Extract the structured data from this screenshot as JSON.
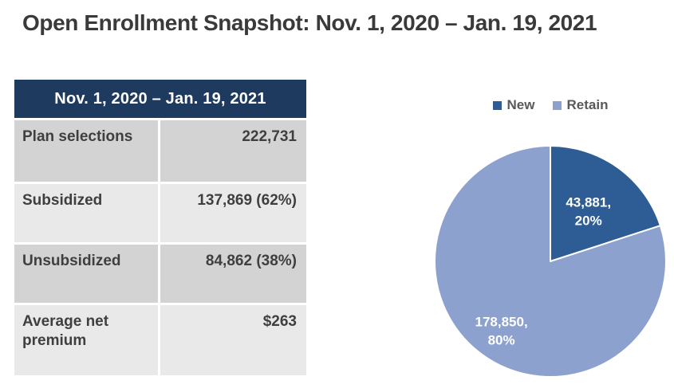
{
  "page": {
    "title": "Open Enrollment Snapshot: Nov. 1, 2020 – Jan. 19, 2021"
  },
  "table": {
    "header": "Nov. 1, 2020 – Jan. 19, 2021",
    "rows": [
      {
        "label": "Plan selections",
        "value": "222,731"
      },
      {
        "label": "Subsidized",
        "value": "137,869 (62%)"
      },
      {
        "label": "Unsubsidized",
        "value": "84,862 (38%)"
      },
      {
        "label": "Average net premium",
        "value": "$263"
      }
    ]
  },
  "chart_data": {
    "type": "pie",
    "legend_position": "top",
    "start_angle_deg": -90,
    "direction": "clockwise",
    "slices": [
      {
        "name": "New",
        "value": 43881,
        "pct": 20,
        "label": "43,881,\n20%",
        "color": "#2e5c95"
      },
      {
        "name": "Retain",
        "value": 178850,
        "pct": 80,
        "label": "178,850,\n80%",
        "color": "#8ca1cd"
      }
    ]
  },
  "colors": {
    "title_text": "#3a3a3a",
    "table_header_bg": "#1f3a5f",
    "table_header_text": "#ffffff",
    "row_band_dark": "#d3d3d3",
    "row_band_light": "#e9e9e9",
    "cell_text": "#3f3f3f",
    "legend_text": "#595959",
    "pie_label_text": "#ffffff",
    "pie_slice_border": "#ffffff"
  }
}
